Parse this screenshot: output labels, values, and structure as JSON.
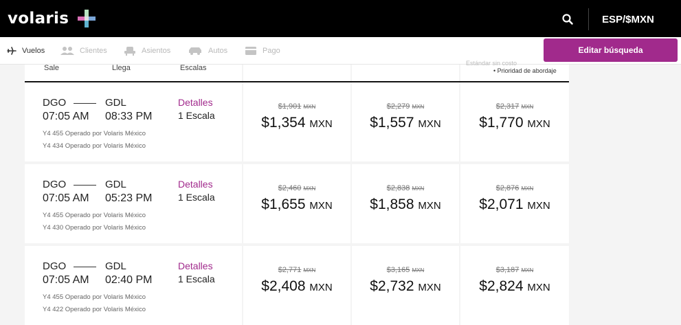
{
  "brand": {
    "name": "volaris"
  },
  "header": {
    "lang_currency": "ESP/$MXN"
  },
  "steps": [
    {
      "label": "Vuelos",
      "icon": "plane-icon",
      "active": true
    },
    {
      "label": "Clientes",
      "icon": "users-icon",
      "active": false
    },
    {
      "label": "Asientos",
      "icon": "seat-icon",
      "active": false
    },
    {
      "label": "Autos",
      "icon": "car-icon",
      "active": false
    },
    {
      "label": "Pago",
      "icon": "card-icon",
      "active": false
    }
  ],
  "edit_button": "Editar búsqueda",
  "table_header": {
    "sale": "Sale",
    "llega": "Llega",
    "escalas": "Escalas",
    "note_faded": "Estándar sin costo",
    "note": "Prioridad de abordaje"
  },
  "flights": [
    {
      "origin": "DGO",
      "destination": "GDL",
      "depart": "07:05 AM",
      "arrive": "08:33 PM",
      "details": "Detalles",
      "stops": "1 Escala",
      "operators": [
        "Y4 455 Operado por Volaris México",
        "Y4 434 Operado por Volaris México"
      ],
      "fares": [
        {
          "old": "$1,901",
          "price": "$1,354"
        },
        {
          "old": "$2,279",
          "price": "$1,557"
        },
        {
          "old": "$2,317",
          "price": "$1,770"
        }
      ]
    },
    {
      "origin": "DGO",
      "destination": "GDL",
      "depart": "07:05 AM",
      "arrive": "05:23 PM",
      "details": "Detalles",
      "stops": "1 Escala",
      "operators": [
        "Y4 455 Operado por Volaris México",
        "Y4 430 Operado por Volaris México"
      ],
      "fares": [
        {
          "old": "$2,460",
          "price": "$1,655"
        },
        {
          "old": "$2,838",
          "price": "$1,858"
        },
        {
          "old": "$2,876",
          "price": "$2,071"
        }
      ]
    },
    {
      "origin": "DGO",
      "destination": "GDL",
      "depart": "07:05 AM",
      "arrive": "02:40 PM",
      "details": "Detalles",
      "stops": "1 Escala",
      "operators": [
        "Y4 455 Operado por Volaris México",
        "Y4 422 Operado por Volaris México"
      ],
      "fares": [
        {
          "old": "$2,771",
          "price": "$2,408"
        },
        {
          "old": "$3,165",
          "price": "$2,732"
        },
        {
          "old": "$3,187",
          "price": "$2,824"
        }
      ]
    }
  ],
  "currency_unit": "MXN",
  "colors": {
    "brand_purple": "#a12a8c",
    "header_bg": "#000000"
  }
}
